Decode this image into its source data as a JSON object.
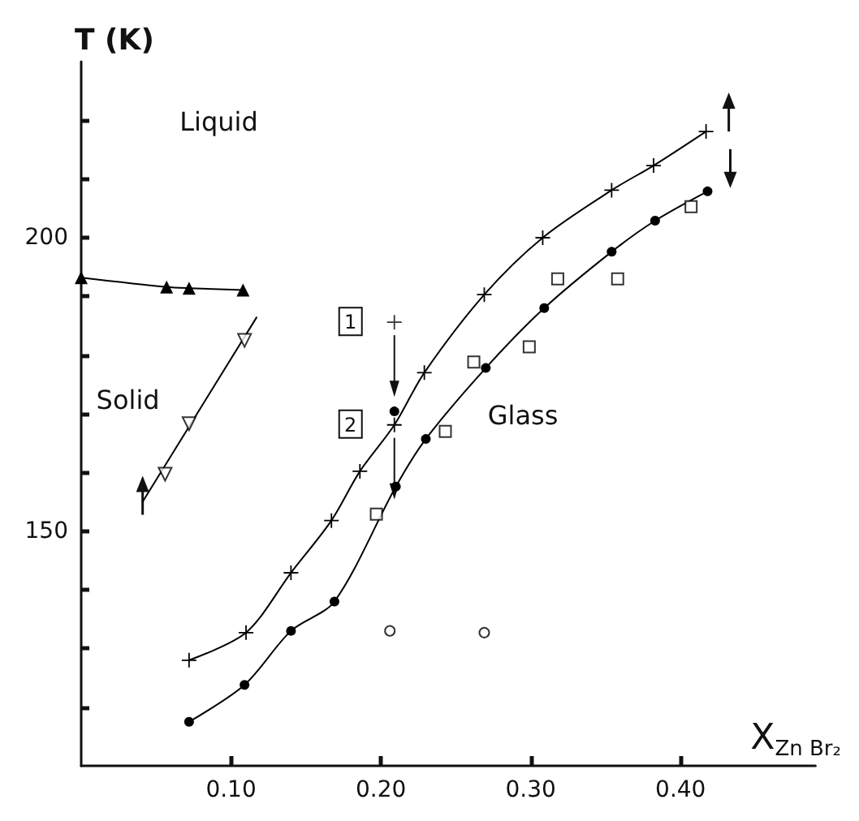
{
  "chart_data": {
    "type": "line",
    "xlabel": "X$_{Zn Br₂}$",
    "ylabel": "T (K)",
    "xlim": [
      0,
      0.49
    ],
    "ylim": [
      110,
      230
    ],
    "xticks": [
      {
        "value": 0.1,
        "label": "0.10"
      },
      {
        "value": 0.2,
        "label": "0.20"
      },
      {
        "value": 0.3,
        "label": "0.30"
      },
      {
        "value": 0.4,
        "label": "0.40"
      }
    ],
    "yticks": [
      {
        "value": 120,
        "label": null
      },
      {
        "value": 130,
        "label": null
      },
      {
        "value": 140,
        "label": null
      },
      150,
      {
        "value": 160,
        "label": null
      },
      {
        "value": 170,
        "label": null
      },
      {
        "value": 180,
        "label": null
      },
      {
        "value": 190,
        "label": null
      },
      200,
      {
        "value": 210,
        "label": null
      },
      {
        "value": 220,
        "label": null
      }
    ],
    "grid": false,
    "line_style": "solid",
    "annotations": [
      "Liquid",
      "Solid",
      "Glass",
      {
        "text": "1",
        "x": 0.209,
        "y": 185.6
      },
      {
        "text": "2",
        "x": 0.209,
        "y": 168.1
      }
    ],
    "series": [
      {
        "marker": "triangle",
        "color": "#000000",
        "x": [
          0,
          0.057,
          0.072,
          0.108
        ],
        "values": [
          193.2,
          191.6,
          191.4,
          191.1
        ]
      },
      {
        "type": "scatter",
        "marker": "triangle",
        "color": "#000000",
        "x": [
          0.056,
          0.072,
          0.109
        ],
        "values": [
          159.7,
          168.3,
          182.5
        ]
      },
      {
        "marker": "none",
        "color": "#000000",
        "x": [
          0.041,
          0.117
        ],
        "values": [
          155,
          186.4
        ]
      },
      {
        "marker": "cross",
        "color": "#000000",
        "x": [
          0.072,
          0.11,
          0.14,
          0.167,
          0.186,
          0.209,
          0.229,
          0.269,
          0.308,
          0.354,
          0.382,
          0.417
        ],
        "values": [
          128.0,
          132.7,
          142.9,
          151.8,
          160.2,
          168.1,
          177.0,
          190.3,
          200.0,
          208.1,
          212.3,
          218.1
        ]
      },
      {
        "type": "scatter",
        "marker": "cross",
        "color": "#000000",
        "x": [
          0.209
        ],
        "values": [
          185.6
        ]
      },
      {
        "marker": "circle",
        "color": "#000000",
        "x": [
          0.072,
          0.109,
          0.14,
          0.169,
          0.21,
          0.23,
          0.27,
          0.309,
          0.354,
          0.383,
          0.418
        ],
        "values": [
          117.5,
          123.8,
          133.0,
          138.0,
          157.6,
          165.7,
          177.8,
          188.0,
          197.6,
          202.9,
          207.9
        ]
      },
      {
        "marker": "circle",
        "color": "#000000",
        "x": [
          0.209
        ],
        "values": [
          170.4
        ]
      },
      {
        "type": "scatter",
        "marker": "square",
        "color": "#000000",
        "x": [
          0.197,
          0.243,
          0.262,
          0.299,
          0.318,
          0.358,
          0.407
        ],
        "values": [
          152.9,
          167.0,
          178.8,
          181.4,
          193.0,
          193.0,
          205.3
        ]
      },
      {
        "type": "scatter",
        "marker": "circle",
        "color": "#000000",
        "x": [
          0.206,
          0.269
        ],
        "values": [
          133.0,
          132.7
        ]
      }
    ]
  }
}
